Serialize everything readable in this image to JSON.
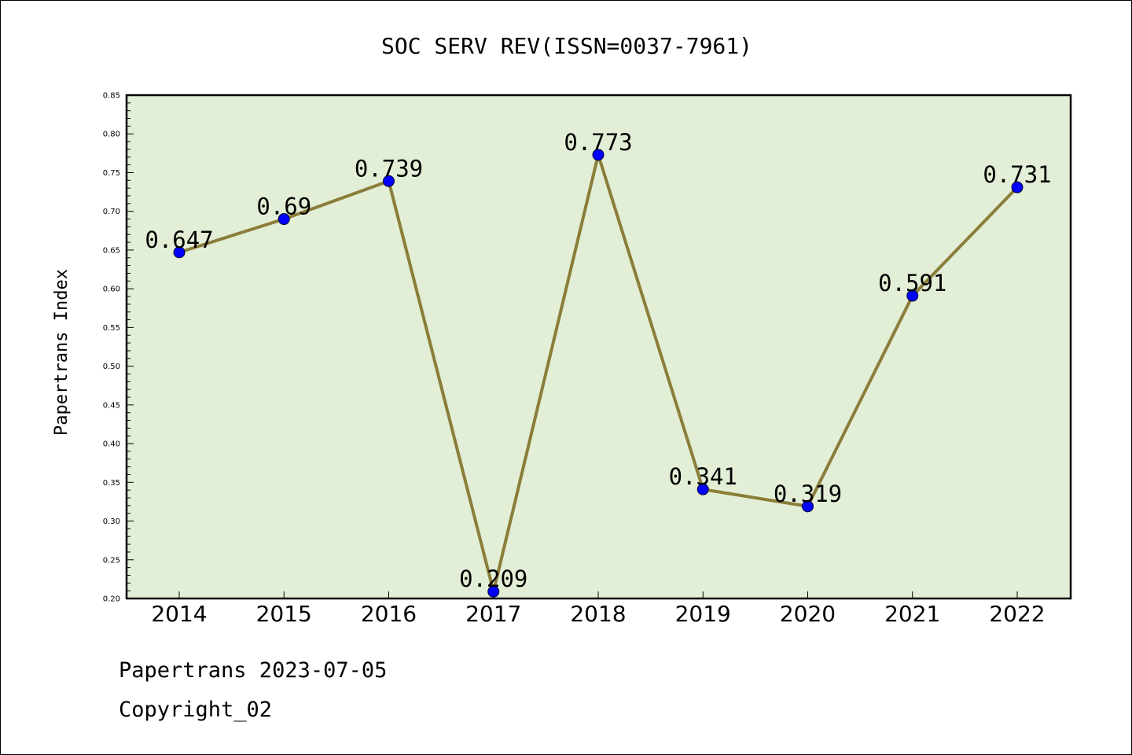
{
  "chart_data": {
    "type": "line",
    "title": "SOC SERV REV(ISSN=0037-7961)",
    "xlabel": "",
    "ylabel": "Papertrans Index",
    "categories": [
      "2014",
      "2015",
      "2016",
      "2017",
      "2018",
      "2019",
      "2020",
      "2021",
      "2022"
    ],
    "values": [
      0.647,
      0.69,
      0.739,
      0.209,
      0.773,
      0.341,
      0.319,
      0.591,
      0.731
    ],
    "data_labels": [
      "0.647",
      "0.69",
      "0.739",
      "0.209",
      "0.773",
      "0.341",
      "0.319",
      "0.591",
      "0.731"
    ],
    "ylim": [
      0.2,
      0.85
    ],
    "yticks": [
      "0.20",
      "0.25",
      "0.30",
      "0.35",
      "0.40",
      "0.45",
      "0.50",
      "0.55",
      "0.60",
      "0.65",
      "0.70",
      "0.75",
      "0.80",
      "0.85"
    ],
    "grid": false,
    "legend": "none",
    "colors": {
      "plot_background": "#e2efd6",
      "line": "#8b7d3a",
      "marker": "#0000ff",
      "axis": "#000000"
    }
  },
  "footer": {
    "date_text": "Papertrans 2023-07-05",
    "copyright_text": "Copyright_02"
  }
}
